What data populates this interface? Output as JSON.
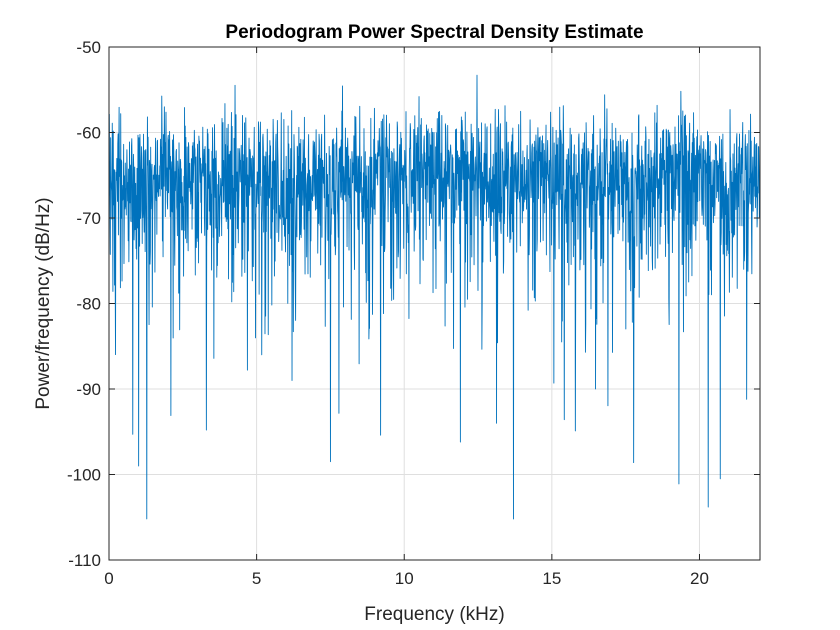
{
  "chart_data": {
    "type": "line",
    "title": "Periodogram Power Spectral Density Estimate",
    "xlabel": "Frequency (kHz)",
    "ylabel": "Power/frequency (dB/Hz)",
    "xlim": [
      0,
      22.05
    ],
    "ylim": [
      -110,
      -50
    ],
    "xticks": [
      0,
      5,
      10,
      15,
      20
    ],
    "yticks": [
      -110,
      -100,
      -90,
      -80,
      -70,
      -60,
      -50
    ],
    "grid": true,
    "series_color": "#0072BD",
    "series": [
      {
        "x_start": 0,
        "x_end": 22.05,
        "points": 2000,
        "mean_db": -66.5,
        "band_top_db": -62,
        "peak_max_db": -53.3,
        "dip_min_db": -105.2,
        "notable_dips": [
          {
            "x": 0.8,
            "y": -95.3
          },
          {
            "x": 1.0,
            "y": -99.0
          },
          {
            "x": 2.1,
            "y": -93.1
          },
          {
            "x": 3.3,
            "y": -94.8
          },
          {
            "x": 6.2,
            "y": -89.0
          },
          {
            "x": 7.5,
            "y": -98.5
          },
          {
            "x": 9.2,
            "y": -95.4
          },
          {
            "x": 11.9,
            "y": -96.2
          },
          {
            "x": 13.7,
            "y": -105.2
          },
          {
            "x": 15.8,
            "y": -94.9
          },
          {
            "x": 19.3,
            "y": -101.1
          },
          {
            "x": 20.3,
            "y": -103.8
          },
          {
            "x": 20.7,
            "y": -100.5
          },
          {
            "x": 21.6,
            "y": -91.2
          }
        ]
      }
    ]
  }
}
